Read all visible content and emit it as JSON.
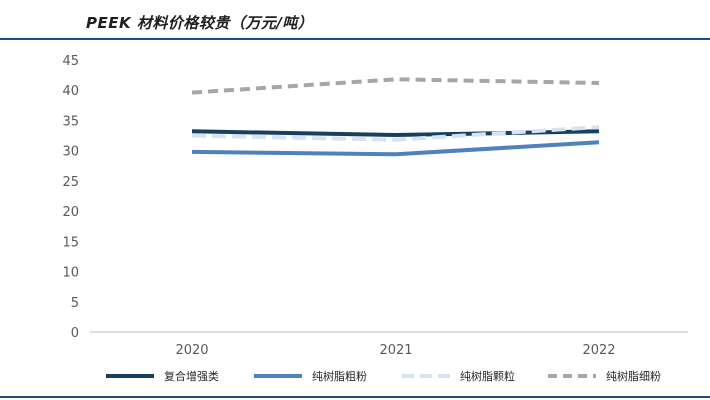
{
  "title": "PEEK 材料价格较贵（万元/吨）",
  "chart_data": {
    "type": "line",
    "title": "PEEK 材料价格较贵（万元/吨）",
    "categories": [
      "2020",
      "2021",
      "2022"
    ],
    "ylim": [
      0,
      45
    ],
    "yticks": [
      0,
      5,
      10,
      15,
      20,
      25,
      30,
      35,
      40,
      45
    ],
    "grid": false,
    "legend_position": "bottom",
    "series": [
      {
        "name": "复合增强类",
        "values": [
          33.2,
          32.6,
          33.2
        ],
        "color": "#17405f",
        "dash": "solid"
      },
      {
        "name": "纯树脂粗粉",
        "values": [
          29.8,
          29.4,
          31.4
        ],
        "color": "#4f81bd",
        "dash": "solid"
      },
      {
        "name": "纯树脂颗粒",
        "values": [
          32.5,
          31.8,
          33.9
        ],
        "color": "#d5e3f3",
        "dash": "dashed"
      },
      {
        "name": "纯树脂细粉",
        "values": [
          39.6,
          41.8,
          41.2
        ],
        "color": "#a6a6a6",
        "dash": "dashed"
      }
    ]
  }
}
